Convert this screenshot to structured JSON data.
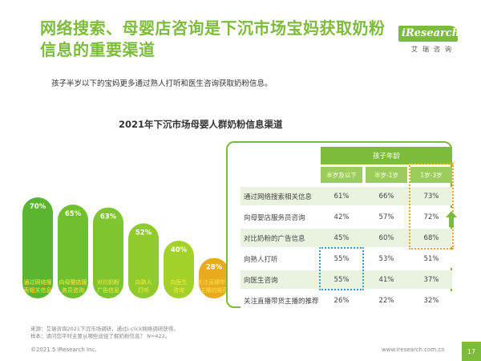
{
  "header": {
    "title": "网络搜索、母婴店咨询是下沉市场宝妈获取奶粉信息的重要渠道",
    "subtitle": "孩子半岁以下的宝妈更多通过熟人打听和医生咨询获取奶粉信息。",
    "logo_text": "iResearch",
    "logo_cn": "艾瑞咨询"
  },
  "chart_data": [
    {
      "type": "bar",
      "title": "2021年下沉市场母婴人群奶粉信息渠道",
      "categories": [
        "通过网络搜索相关信息",
        "向母婴店服务员咨询",
        "对比奶粉广告信息",
        "向熟人打听",
        "向医生咨询",
        "关注直播带货主播的推荐"
      ],
      "values": [
        70,
        65,
        63,
        52,
        40,
        28
      ],
      "labels": [
        "70%",
        "65%",
        "63%",
        "52%",
        "40%",
        "28%"
      ],
      "bar_texts": [
        "通过网络搜\n索相关信息",
        "向母婴店服\n务员咨询",
        "对比奶粉\n广告信息",
        "向熟人\n打听",
        "向医生\n咨询",
        "关注直播带货\n主播的推荐"
      ],
      "colors": [
        "#5cb531",
        "#6fbf2f",
        "#7fc52f",
        "#8fcb2c",
        "#a3d12a",
        "#e8ab1e"
      ]
    },
    {
      "type": "table",
      "header_group": "孩子年龄",
      "columns": [
        "半岁及以下",
        "半岁-1岁",
        "1岁-3岁"
      ],
      "rows": [
        {
          "label": "通过网络搜索相关信息",
          "values": [
            "61%",
            "66%",
            "73%"
          ]
        },
        {
          "label": "向母婴店服务员咨询",
          "values": [
            "42%",
            "57%",
            "72%"
          ]
        },
        {
          "label": "对比奶粉的广告信息",
          "values": [
            "45%",
            "60%",
            "68%"
          ]
        },
        {
          "label": "向熟人打听",
          "values": [
            "55%",
            "53%",
            "51%"
          ]
        },
        {
          "label": "向医生咨询",
          "values": [
            "55%",
            "41%",
            "37%"
          ]
        },
        {
          "label": "关注直播带货主播的推荐",
          "values": [
            "26%",
            "22%",
            "32%"
          ]
        }
      ]
    }
  ],
  "footer": {
    "source": "来源：艾瑞咨询2021下沉市场调研，通过i-click网络调研获得。",
    "sample": "样本：请问您平时主要从哪些途径了解奶粉信息？ N=422。",
    "copyright": "©2021.5 iResearch Inc.",
    "website": "www.iresearch.com.cn",
    "page": "17"
  },
  "colors": {
    "accent": "#7dbb3c",
    "highlight_orange": "#f0a81a",
    "highlight_blue": "#2a9fd8",
    "row_tint": "#eaf3df"
  }
}
